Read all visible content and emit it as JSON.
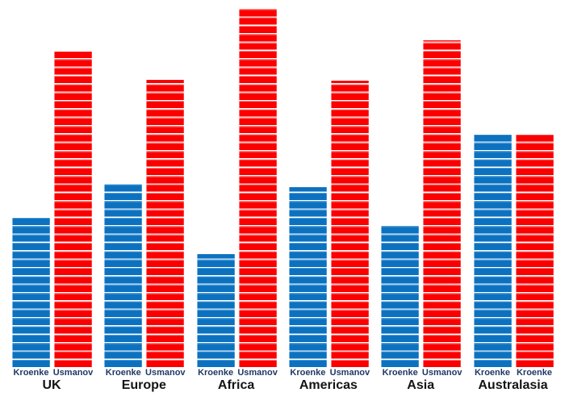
{
  "chart_data": {
    "type": "bar",
    "title": "",
    "xlabel": "",
    "ylabel": "",
    "value_axis": "none (no axis lines, ticks, gridlines or data labels visible)",
    "unit": "relative bar height in screen px (no scale shown)",
    "ylim": [
      0,
      445
    ],
    "legend": "none",
    "categories": [
      "UK",
      "Europe",
      "Africa",
      "Americas",
      "Asia",
      "Australasia"
    ],
    "series": [
      {
        "name": "Kroenke",
        "color": "#0C72BF",
        "values": [
          186,
          227,
          140,
          223,
          175,
          288
        ]
      },
      {
        "name": "Usmanov",
        "color": "#FB0000",
        "values": [
          391,
          356,
          445,
          355,
          405,
          288
        ]
      }
    ],
    "bar_labels": [
      [
        "Kroenke",
        "Usmanov"
      ],
      [
        "Kroenke",
        "Usmanov"
      ],
      [
        "Kroenke",
        "Usmanov"
      ],
      [
        "Kroenke",
        "Usmanov"
      ],
      [
        "Kroenke",
        "Usmanov"
      ],
      [
        "Kroenke",
        "Kroenke"
      ]
    ],
    "colors": {
      "blue_main": "#0C72BF",
      "blue_stripe": "#4E9CD8",
      "red_main": "#FB0000",
      "red_stripe": "#FF7B7B",
      "bar_label_navy": "#1F3864",
      "region_label_black": "#141414",
      "background": "#FFFFFF"
    }
  }
}
